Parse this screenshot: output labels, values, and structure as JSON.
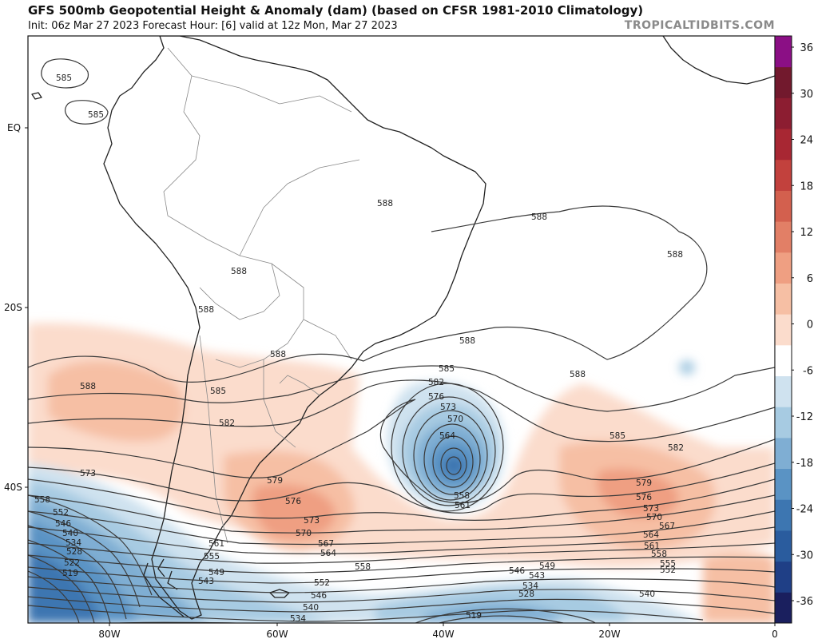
{
  "header": {
    "title": "GFS 500mb Geopotential Height & Anomaly (dam) (based on CFSR 1981-2010 Climatology)",
    "subtitle": "Init: 06z Mar 27 2023   Forecast Hour: [6]   valid at 12z Mon, Mar 27 2023",
    "site": "TROPICALTIDBITS.COM"
  },
  "axes": {
    "lat_labels": [
      "EQ",
      "20S",
      "40S"
    ],
    "lon_labels": [
      "80W",
      "60W",
      "40W",
      "20W",
      "0"
    ]
  },
  "colorbar": {
    "ticks": [
      "36",
      "30",
      "24",
      "18",
      "12",
      "6",
      "0",
      "-6",
      "-12",
      "-18",
      "-24",
      "-30",
      "-36"
    ],
    "colors": [
      "#1a1f5e",
      "#1f3f86",
      "#2a5c9e",
      "#3d76b1",
      "#5a93c4",
      "#7faed3",
      "#a7cbe2",
      "#cfe2ef",
      "#ffffff",
      "#fbdccc",
      "#f6bfa4",
      "#ef9f82",
      "#e27f66",
      "#d3604e",
      "#c2413d",
      "#a82733",
      "#8c1d31",
      "#72192d",
      "#8b0f85"
    ]
  },
  "contour_labels": [
    {
      "id": "c585a",
      "text": "585"
    },
    {
      "id": "c585b",
      "text": "585"
    },
    {
      "id": "c588a",
      "text": "588"
    },
    {
      "id": "c588b",
      "text": "588"
    },
    {
      "id": "c588c",
      "text": "588"
    },
    {
      "id": "c588d",
      "text": "588"
    },
    {
      "id": "c588e",
      "text": "588"
    },
    {
      "id": "c588f",
      "text": "588"
    },
    {
      "id": "c588g",
      "text": "588"
    },
    {
      "id": "c588h",
      "text": "588"
    },
    {
      "id": "c588i",
      "text": "588"
    },
    {
      "id": "c585c",
      "text": "585"
    },
    {
      "id": "c582a",
      "text": "582"
    },
    {
      "id": "c585d",
      "text": "585"
    },
    {
      "id": "c582b",
      "text": "582"
    },
    {
      "id": "c576a",
      "text": "576"
    },
    {
      "id": "c573a",
      "text": "573"
    },
    {
      "id": "c570a",
      "text": "570"
    },
    {
      "id": "c564a",
      "text": "564"
    },
    {
      "id": "c558a",
      "text": "558"
    },
    {
      "id": "c561a",
      "text": "561"
    },
    {
      "id": "c585e",
      "text": "585"
    },
    {
      "id": "c582c",
      "text": "582"
    },
    {
      "id": "c579a",
      "text": "579"
    },
    {
      "id": "c576b",
      "text": "576"
    },
    {
      "id": "c573b",
      "text": "573"
    },
    {
      "id": "c570b",
      "text": "570"
    },
    {
      "id": "c567a",
      "text": "567"
    },
    {
      "id": "c564b",
      "text": "564"
    },
    {
      "id": "c561b",
      "text": "561"
    },
    {
      "id": "c558b",
      "text": "558"
    },
    {
      "id": "c555a",
      "text": "555"
    },
    {
      "id": "c552a",
      "text": "552"
    },
    {
      "id": "c549a",
      "text": "549"
    },
    {
      "id": "c546a",
      "text": "546"
    },
    {
      "id": "c543a",
      "text": "543"
    },
    {
      "id": "c540a",
      "text": "540"
    },
    {
      "id": "c534a",
      "text": "534"
    },
    {
      "id": "c528a",
      "text": "528"
    },
    {
      "id": "c519a",
      "text": "519"
    },
    {
      "id": "c573c",
      "text": "573"
    },
    {
      "id": "c558c",
      "text": "558"
    },
    {
      "id": "c552b",
      "text": "552"
    },
    {
      "id": "c546b",
      "text": "546"
    },
    {
      "id": "c540b",
      "text": "540"
    },
    {
      "id": "c534b",
      "text": "534"
    },
    {
      "id": "c528b",
      "text": "528"
    },
    {
      "id": "c522a",
      "text": "522"
    },
    {
      "id": "c519b",
      "text": "519"
    },
    {
      "id": "c579b",
      "text": "579"
    },
    {
      "id": "c576c",
      "text": "576"
    },
    {
      "id": "c573d",
      "text": "573"
    },
    {
      "id": "c570c",
      "text": "570"
    },
    {
      "id": "c567b",
      "text": "567"
    },
    {
      "id": "c564c",
      "text": "564"
    },
    {
      "id": "c561c",
      "text": "561"
    },
    {
      "id": "c558d",
      "text": "558"
    },
    {
      "id": "c555b",
      "text": "555"
    },
    {
      "id": "c552c",
      "text": "552"
    },
    {
      "id": "c549b",
      "text": "549"
    },
    {
      "id": "c546c",
      "text": "546"
    },
    {
      "id": "c543b",
      "text": "543"
    },
    {
      "id": "c534c",
      "text": "534"
    },
    {
      "id": "c528c",
      "text": "528"
    },
    {
      "id": "c540c",
      "text": "540"
    },
    {
      "id": "c519c",
      "text": "519"
    },
    {
      "id": "c555c",
      "text": "555"
    },
    {
      "id": "c552d",
      "text": "552"
    },
    {
      "id": "c549c",
      "text": "549"
    },
    {
      "id": "c546d",
      "text": "546"
    },
    {
      "id": "c543c",
      "text": "543"
    },
    {
      "id": "c540d",
      "text": "540"
    },
    {
      "id": "c534d",
      "text": "534"
    }
  ]
}
